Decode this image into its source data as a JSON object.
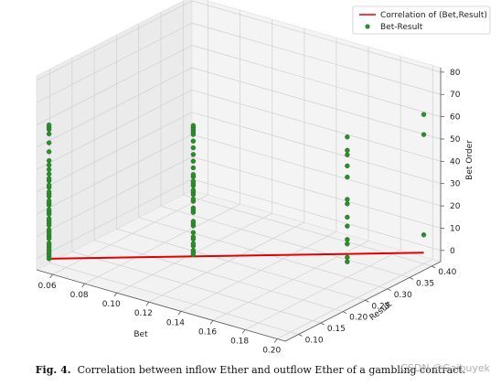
{
  "chart_data": {
    "type": "scatter",
    "projection": "3d",
    "x_axis": {
      "label": "Bet",
      "ticks": [
        "0.06",
        "0.08",
        "0.10",
        "0.12",
        "0.14",
        "0.16",
        "0.18",
        "0.20"
      ],
      "range": [
        0.05,
        0.205
      ]
    },
    "y_axis": {
      "label": "Result",
      "ticks": [
        "0.10",
        "0.15",
        "0.20",
        "0.25",
        "0.30",
        "0.35",
        "0.40"
      ],
      "range": [
        0.07,
        0.42
      ]
    },
    "z_axis": {
      "label": "Bet Order",
      "ticks": [
        "0",
        "10",
        "20",
        "30",
        "40",
        "50",
        "60",
        "70",
        "80"
      ],
      "range": [
        -5,
        82
      ]
    },
    "grid": true,
    "legend_position": "top-right",
    "series": [
      {
        "name": "Correlation of (Bet,Result)",
        "kind": "line",
        "color": "#e00000",
        "points": [
          [
            0.055,
            0.08,
            0
          ],
          [
            0.2,
            0.4,
            0
          ]
        ]
      },
      {
        "name": "Bet-Result",
        "kind": "scatter",
        "color": "#2e8b2e",
        "groups": [
          {
            "x": 0.055,
            "y": 0.08,
            "z": [
              0,
              1,
              2,
              3,
              4,
              5,
              6,
              7,
              9,
              10,
              11,
              12,
              13,
              15,
              16,
              17,
              18,
              20,
              21,
              22,
              24,
              25,
              26,
              28,
              29,
              30,
              32,
              33,
              35,
              36,
              38,
              40,
              42,
              44,
              48,
              52,
              56,
              58,
              59,
              60
            ]
          },
          {
            "x": 0.12,
            "y": 0.17,
            "z": [
              6,
              7,
              8,
              10,
              11,
              13,
              14,
              16,
              19,
              20,
              21,
              25,
              26,
              27,
              30,
              31,
              33,
              34,
              35,
              37,
              38,
              39,
              41,
              42,
              45,
              48,
              51,
              54,
              57,
              60,
              61,
              62,
              63,
              64
            ]
          },
          {
            "x": 0.18,
            "y": 0.3,
            "z": [
              2,
              4,
              10,
              12,
              18,
              22,
              28,
              30,
              40,
              45,
              50,
              52,
              58
            ]
          },
          {
            "x": 0.2,
            "y": 0.4,
            "z": [
              8,
              53,
              62
            ]
          }
        ]
      }
    ]
  },
  "caption": {
    "label": "Fig. 4.",
    "text": "Correlation between inflow Ether and outflow Ether of a gambling contract."
  },
  "watermark": "CSDN @Gaibuyek"
}
